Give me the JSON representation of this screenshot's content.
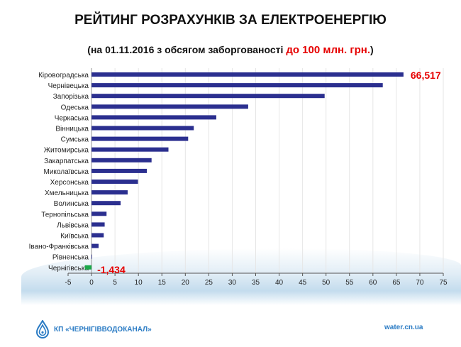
{
  "chart_data": {
    "type": "bar",
    "orientation": "horizontal",
    "title": "РЕЙТИНГ РОЗРАХУНКІВ ЗА ЕЛЕКТРОЕНЕРГІЮ",
    "subtitle_prefix": "(на 01.11.2016 з обсягом заборгованості ",
    "subtitle_highlight": "до 100 млн. грн.",
    "subtitle_suffix": ")",
    "categories": [
      "Кіровоградська",
      "Чернівецька",
      "Запорізька",
      "Одеська",
      "Черкаська",
      "Вінницька",
      "Сумська",
      "Житомирська",
      "Закарпатська",
      "Миколаївська",
      "Херсонська",
      "Хмельницька",
      "Волинська",
      "Тернопільська",
      "Львівська",
      "Київська",
      "Івано-Франківська",
      "Рівненська",
      "Чернігівська"
    ],
    "values": [
      66.517,
      62.1,
      49.7,
      33.4,
      26.6,
      21.8,
      20.6,
      16.4,
      12.8,
      11.8,
      9.9,
      7.7,
      6.2,
      3.2,
      2.8,
      2.6,
      1.5,
      0.1,
      -1.434
    ],
    "data_labels": [
      {
        "index": 0,
        "text": "66,517"
      },
      {
        "index": 18,
        "text": "-1,434"
      }
    ],
    "xlim": [
      -5,
      75
    ],
    "xticks": [
      -5,
      0,
      5,
      10,
      15,
      20,
      25,
      30,
      35,
      40,
      45,
      50,
      55,
      60,
      65,
      70,
      75
    ],
    "grid": true,
    "colors": {
      "bar": "#2b2f8f",
      "highlight": "#1aa84a",
      "label": "#e60000",
      "grid": "#e6e6e6"
    }
  },
  "footer": {
    "org": "КП «ЧЕРНІГІВВОДОКАНАЛ»",
    "url": "water.cn.ua"
  }
}
